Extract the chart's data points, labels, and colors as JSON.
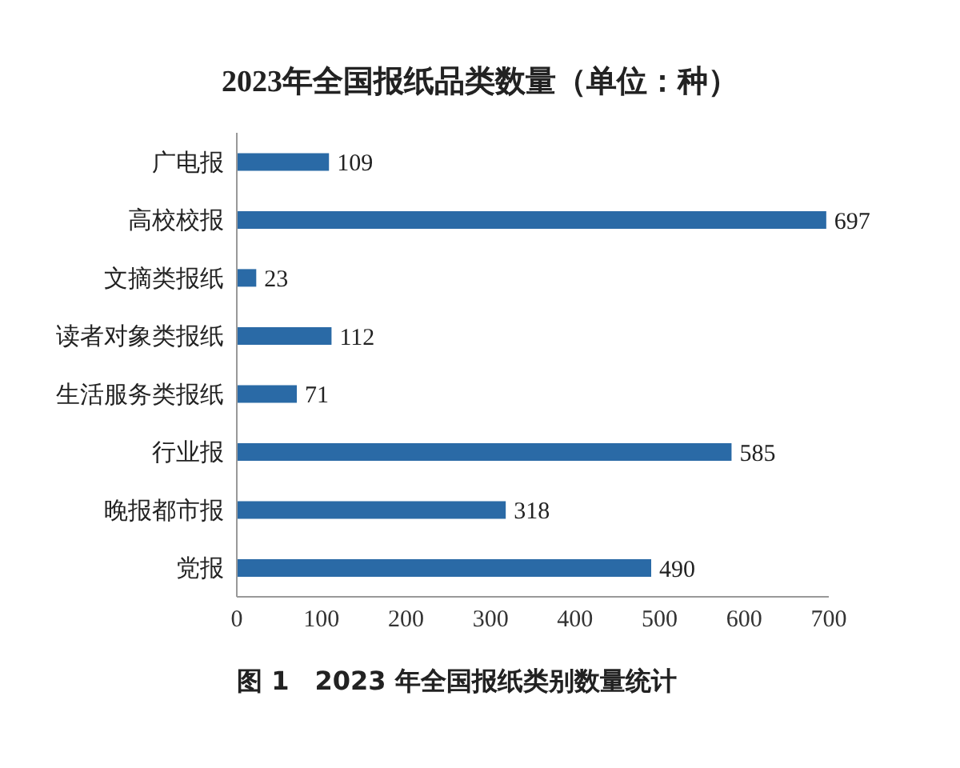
{
  "chart_data": {
    "type": "bar",
    "orientation": "horizontal",
    "title": "2023年全国报纸品类数量（单位：种）",
    "categories": [
      "广电报",
      "高校校报",
      "文摘类报纸",
      "读者对象类报纸",
      "生活服务类报纸",
      "行业报",
      "晚报都市报",
      "党报"
    ],
    "values": [
      109,
      697,
      23,
      112,
      71,
      585,
      318,
      490
    ],
    "color": "#2a6aa6",
    "xlim": [
      0,
      700
    ],
    "xticks": [
      0,
      100,
      200,
      300,
      400,
      500,
      600,
      700
    ],
    "data_labels": true,
    "annotations": [
      "图 1　2023 年全国报纸类别数量统计"
    ]
  }
}
